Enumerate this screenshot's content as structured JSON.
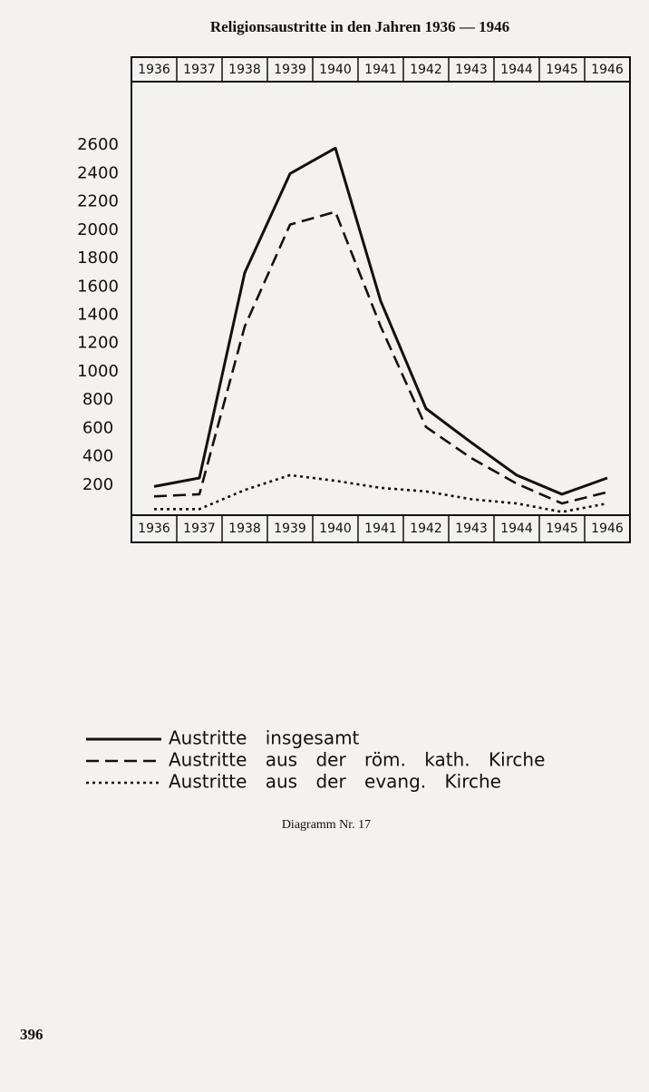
{
  "chart_data": {
    "type": "line",
    "title": "Religionsaustritte in den Jahren 1936 — 1946",
    "categories": [
      "1936",
      "1937",
      "1938",
      "1939",
      "1940",
      "1941",
      "1942",
      "1943",
      "1944",
      "1945",
      "1946"
    ],
    "series": [
      {
        "name": "Austritte insgesamt",
        "color": "#111111",
        "dash": "solid",
        "values": [
          190,
          250,
          1700,
          2400,
          2580,
          1500,
          740,
          500,
          270,
          135,
          250
        ]
      },
      {
        "name": "Austritte aus der röm. kath. Kirche",
        "color": "#111111",
        "dash": "dashed",
        "values": [
          120,
          135,
          1320,
          2040,
          2130,
          1320,
          610,
          390,
          210,
          70,
          150
        ]
      },
      {
        "name": "Austritte aus der evang. Kirche",
        "color": "#111111",
        "dash": "dotted",
        "values": [
          30,
          30,
          165,
          270,
          230,
          180,
          155,
          100,
          70,
          10,
          70
        ]
      }
    ],
    "ylim": [
      0,
      3050
    ],
    "yticks": [
      200,
      400,
      600,
      800,
      1000,
      1200,
      1400,
      1600,
      1800,
      2000,
      2200,
      2400,
      2600
    ],
    "grid": false
  },
  "caption": "Diagramm Nr. 17",
  "page_number": "396"
}
